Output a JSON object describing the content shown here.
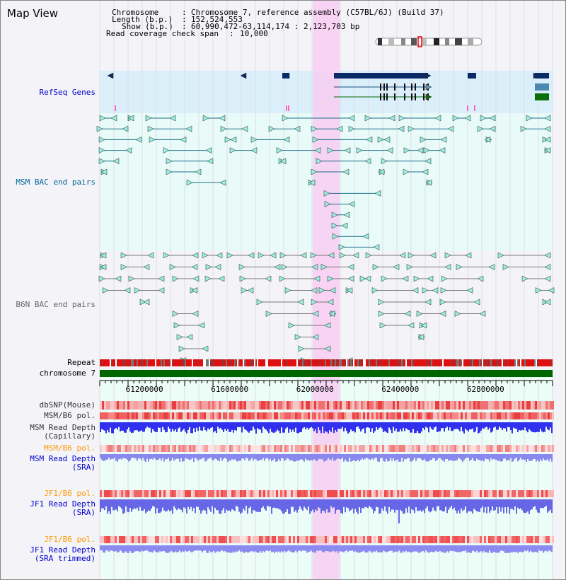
{
  "title": "Map View",
  "info": {
    "chromosome_key": "Chromosome",
    "chromosome_val": "Chromosome 7, reference assembly (C57BL/6J) (Build 37)",
    "length_key": "Length (b.p.)",
    "length_val": "152,524,553",
    "show_key": "Show (b.p.)",
    "show_val": "60,990,472-63,114,174 : 2,123,703 bp",
    "coverage_key": "Read coverage check span",
    "coverage_val": "10,000"
  },
  "tracks": {
    "refseq": "RefSeq Genes",
    "msm_bac": "MSM BAC end pairs",
    "b6n_bac": "B6N BAC end pairs",
    "repeat": "Repeat",
    "chromosome": "chromosome 7",
    "dbsnp": "dbSNP(Mouse)",
    "msm_b6_pol": "MSM/B6 pol.",
    "msm_read_depth_cap_1": "MSM Read Depth",
    "msm_read_depth_cap_2": "(Capillary)",
    "msm_b6_pol_2": "MSM/B6 pol.",
    "msm_read_depth_sra_1": "MSM Read Depth",
    "msm_read_depth_sra_2": "(SRA)",
    "jf1_b6_pol": "JF1/B6 pol.",
    "jf1_read_depth_1": "JF1 Read Depth",
    "jf1_read_depth_2": "(SRA)",
    "jf1_b6_pol_2": "JF1/B6 pol.",
    "jf1_trim_1": "JF1 Read Depth",
    "jf1_trim_2": "(SRA trimmed)"
  },
  "axis": {
    "range": [
      60990472,
      63114174
    ],
    "ticks": [
      "61200000",
      "61600000",
      "62000000",
      "62400000",
      "62800000"
    ]
  },
  "highlight": {
    "start": 61990000,
    "end": 62115000
  },
  "colors": {
    "refseq_label": "#0000cc",
    "msm_label": "#006699",
    "b6n_label": "#666666",
    "orange_label": "#ff9900",
    "blue_label": "#0000cc",
    "gene": "#0a2a66",
    "msm_pair": "#1f6f8b",
    "b6n_pair": "#777777",
    "highlight": "#f8ccf2",
    "chromosome_bar": "#006600"
  }
}
